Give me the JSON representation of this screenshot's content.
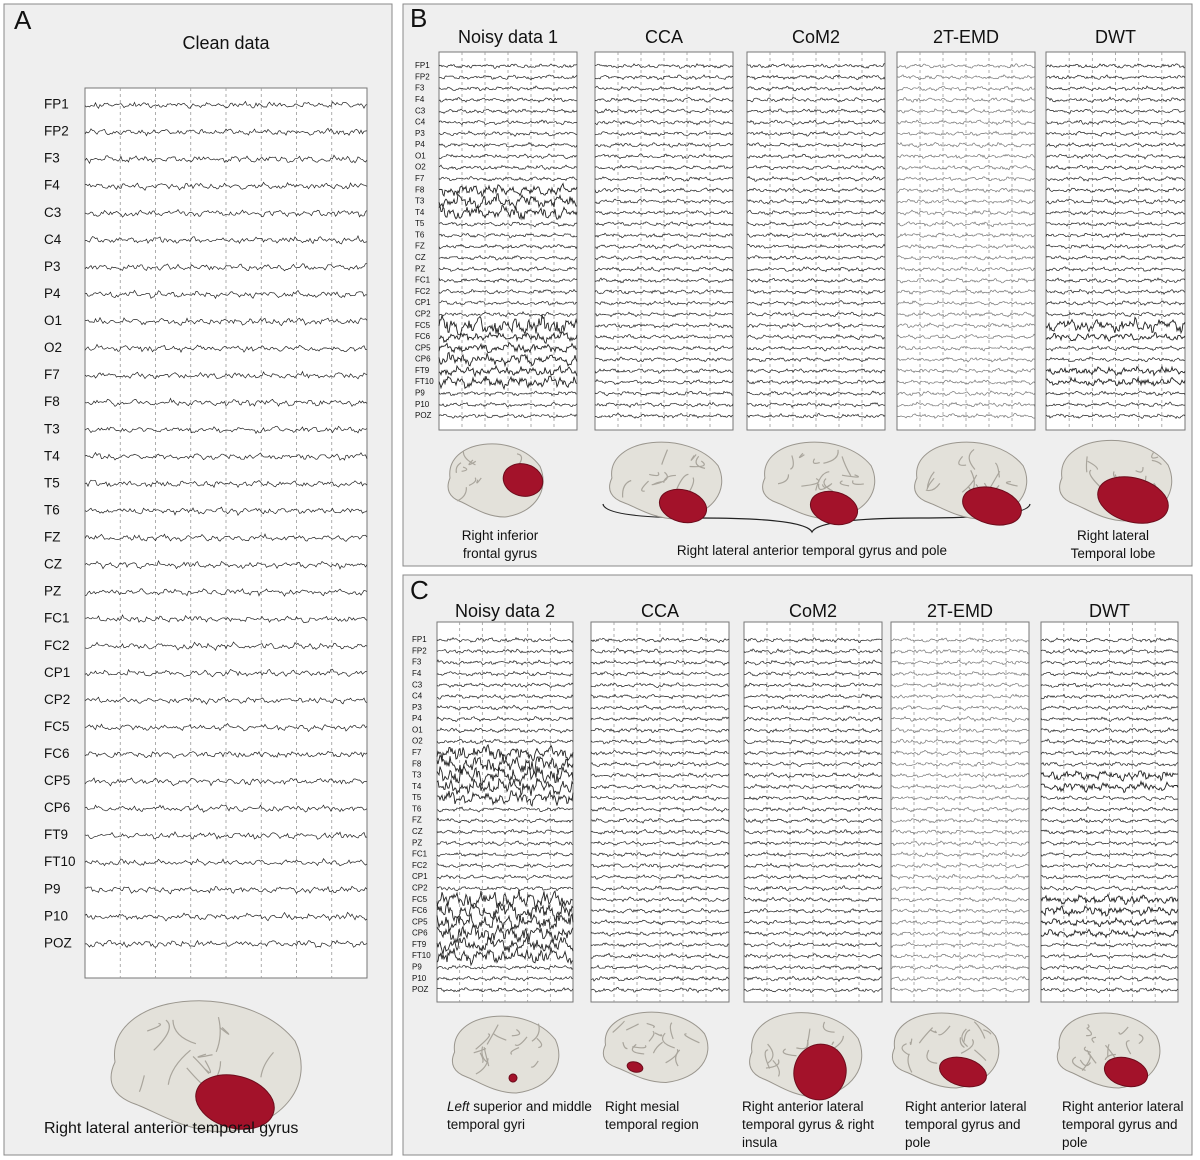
{
  "channels": [
    "FP1",
    "FP2",
    "F3",
    "F4",
    "C3",
    "C4",
    "P3",
    "P4",
    "O1",
    "O2",
    "F7",
    "F8",
    "T3",
    "T4",
    "T5",
    "T6",
    "FZ",
    "CZ",
    "PZ",
    "FC1",
    "FC2",
    "CP1",
    "CP2",
    "FC5",
    "FC6",
    "CP5",
    "CP6",
    "FT9",
    "FT10",
    "P9",
    "P10",
    "POZ"
  ],
  "panels": [
    {
      "label": "A",
      "columns": [
        {
          "title": "Clean data",
          "caption": "Right lateral anterior temporal gyrus"
        }
      ]
    },
    {
      "label": "B",
      "columns": [
        {
          "title": "Noisy data 1",
          "caption": "Right inferior frontal gyrus"
        },
        {
          "title": "CCA"
        },
        {
          "title": "CoM2"
        },
        {
          "title": "2T-EMD"
        },
        {
          "title": "DWT",
          "caption": "Right lateral Temporal lobe"
        }
      ],
      "group_caption": "Right lateral anterior temporal gyrus and pole"
    },
    {
      "label": "C",
      "columns": [
        {
          "title": "Noisy data 2",
          "caption_em": "Left",
          "caption": "superior and middle temporal gyri"
        },
        {
          "title": "CCA",
          "caption": "Right mesial temporal region"
        },
        {
          "title": "CoM2",
          "caption": "Right anterior lateral temporal gyrus & right insula"
        },
        {
          "title": "2T-EMD",
          "caption": "Right anterior lateral temporal gyrus and pole"
        },
        {
          "title": "DWT",
          "caption": "Right anterior lateral temporal gyrus and pole"
        }
      ]
    }
  ]
}
